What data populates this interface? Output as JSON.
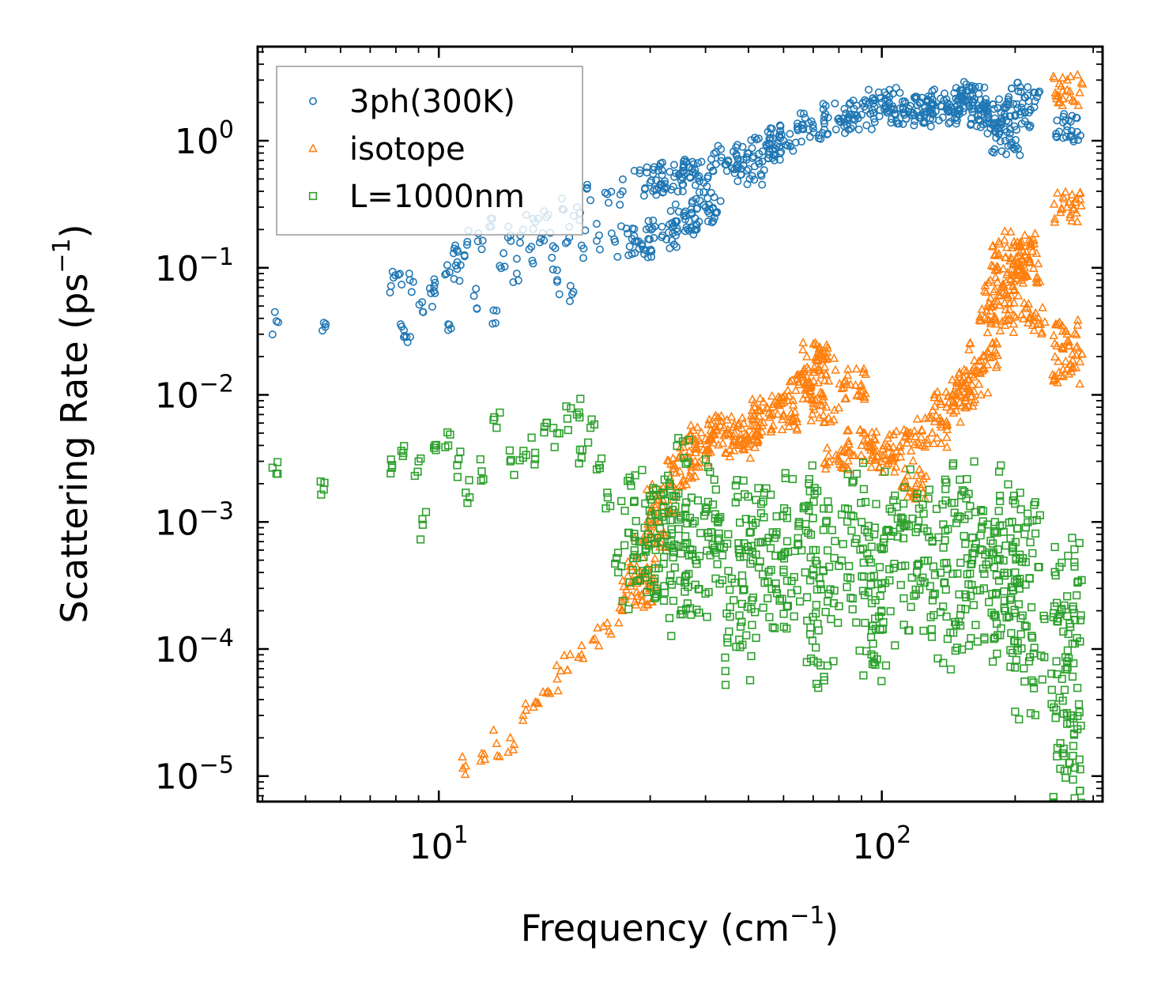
{
  "chart_data": {
    "type": "scatter",
    "xscale": "log",
    "yscale": "log",
    "xlim": [
      3.9,
      315
    ],
    "ylim": [
      6.3e-06,
      5.5
    ],
    "xlabel": {
      "main": "Frequency (cm",
      "sup": "−1",
      "tail": ")"
    },
    "ylabel": {
      "main": "Scattering Rate (ps",
      "sup": "−1",
      "tail": ")"
    },
    "xticks": [
      {
        "value": 10,
        "base": "10",
        "exp": "1"
      },
      {
        "value": 100,
        "base": "10",
        "exp": "2"
      }
    ],
    "yticks": [
      {
        "value": 1,
        "base": "10",
        "exp": "0"
      },
      {
        "value": 0.1,
        "base": "10",
        "exp": "−1"
      },
      {
        "value": 0.01,
        "base": "10",
        "exp": "−2"
      },
      {
        "value": 0.001,
        "base": "10",
        "exp": "−3"
      },
      {
        "value": 0.0001,
        "base": "10",
        "exp": "−4"
      },
      {
        "value": 1e-05,
        "base": "10",
        "exp": "−5"
      }
    ],
    "legend": {
      "location": "upper-left"
    },
    "series": [
      {
        "name": "3ph(300K)",
        "marker": "circle",
        "color": "#1f77b4",
        "points": [
          [
            4.3,
            0.038
          ],
          [
            5.5,
            0.037
          ],
          [
            7.8,
            0.072
          ],
          [
            8.1,
            0.088
          ],
          [
            8.2,
            0.036
          ],
          [
            8.5,
            0.026
          ],
          [
            8.6,
            0.08
          ],
          [
            9.2,
            0.045
          ],
          [
            9.6,
            0.063
          ],
          [
            9.8,
            0.063
          ],
          [
            10.4,
            0.09
          ],
          [
            10.5,
            0.036
          ],
          [
            10.8,
            0.13
          ],
          [
            11.0,
            0.098
          ],
          [
            11.2,
            0.105
          ],
          [
            11.6,
            0.16
          ],
          [
            12.0,
            0.06
          ],
          [
            12.5,
            0.14
          ],
          [
            13.0,
            0.21
          ],
          [
            13.5,
            0.046
          ],
          [
            14.0,
            0.13
          ],
          [
            14.5,
            0.18
          ],
          [
            15.0,
            0.09
          ],
          [
            15.5,
            0.2
          ],
          [
            16.0,
            0.14
          ],
          [
            16.5,
            0.23
          ],
          [
            17.0,
            0.17
          ],
          [
            17.5,
            0.25
          ],
          [
            18.0,
            0.12
          ],
          [
            18.5,
            0.08
          ],
          [
            19.0,
            0.29
          ],
          [
            19.5,
            0.16
          ],
          [
            20.0,
            0.062
          ],
          [
            20.5,
            0.3
          ],
          [
            21.0,
            0.15
          ],
          [
            22.0,
            0.34
          ],
          [
            23.0,
            0.18
          ],
          [
            24.0,
            0.38
          ],
          [
            25.0,
            0.16
          ],
          [
            26.0,
            0.4
          ],
          [
            28.0,
            0.16
          ],
          [
            30.0,
            0.47
          ],
          [
            32.0,
            0.18
          ],
          [
            34.0,
            0.52
          ],
          [
            36.0,
            0.24
          ],
          [
            38.0,
            0.55
          ],
          [
            40.0,
            0.3
          ],
          [
            45.0,
            0.7
          ],
          [
            50.0,
            0.6
          ],
          [
            55.0,
            0.9
          ],
          [
            60.0,
            1.0
          ],
          [
            70.0,
            1.25
          ],
          [
            80.0,
            1.5
          ],
          [
            90.0,
            1.6
          ],
          [
            100.0,
            2.0
          ],
          [
            110.0,
            1.8
          ],
          [
            120.0,
            1.7
          ],
          [
            130.0,
            1.9
          ],
          [
            140.0,
            1.8
          ],
          [
            150.0,
            2.2
          ],
          [
            160.0,
            2.0
          ],
          [
            170.0,
            1.7
          ],
          [
            180.0,
            1.5
          ],
          [
            190.0,
            1.0
          ],
          [
            200.0,
            1.6
          ],
          [
            210.0,
            2.2
          ],
          [
            262.0,
            1.3
          ]
        ]
      },
      {
        "name": "isotope",
        "marker": "triangle",
        "color": "#ff7f0e",
        "points": [
          [
            11.5,
            1.2e-05
          ],
          [
            12.5,
            1.5e-05
          ],
          [
            13.5,
            1.8e-05
          ],
          [
            14.5,
            2e-05
          ],
          [
            15.5,
            3e-05
          ],
          [
            16.5,
            3.8e-05
          ],
          [
            17.5,
            4.5e-05
          ],
          [
            18.5,
            5.8e-05
          ],
          [
            19.5,
            6.8e-05
          ],
          [
            21.0,
            9e-05
          ],
          [
            22.5,
            0.00012
          ],
          [
            24.0,
            0.00016
          ],
          [
            26.0,
            0.0002
          ],
          [
            28.0,
            0.00028
          ],
          [
            29.0,
            0.0004
          ],
          [
            30.0,
            0.0008
          ],
          [
            32.0,
            0.0015
          ],
          [
            35.0,
            0.0025
          ],
          [
            38.0,
            0.0035
          ],
          [
            40.0,
            0.0045
          ],
          [
            44.0,
            0.0055
          ],
          [
            48.0,
            0.004
          ],
          [
            52.0,
            0.005
          ],
          [
            55.0,
            0.008
          ],
          [
            60.0,
            0.007
          ],
          [
            65.0,
            0.012
          ],
          [
            70.0,
            0.015
          ],
          [
            72.0,
            0.02
          ],
          [
            75.0,
            0.008
          ],
          [
            80.0,
            0.003
          ],
          [
            85.0,
            0.012
          ],
          [
            90.0,
            0.004
          ],
          [
            100.0,
            0.003
          ],
          [
            110.0,
            0.004
          ],
          [
            120.0,
            0.002
          ],
          [
            130.0,
            0.005
          ],
          [
            140.0,
            0.008
          ],
          [
            150.0,
            0.01
          ],
          [
            160.0,
            0.012
          ],
          [
            170.0,
            0.02
          ],
          [
            180.0,
            0.04
          ],
          [
            185.0,
            0.06
          ],
          [
            190.0,
            0.12
          ],
          [
            195.0,
            0.08
          ],
          [
            205.0,
            0.15
          ],
          [
            210.0,
            0.1
          ],
          [
            215.0,
            0.04
          ],
          [
            262.0,
            2.5
          ],
          [
            262.0,
            0.3
          ],
          [
            262.0,
            0.03
          ],
          [
            262.0,
            0.016
          ]
        ]
      },
      {
        "name": "L=1000nm",
        "marker": "square",
        "color": "#2ca02c",
        "points": [
          [
            4.3,
            0.0024
          ],
          [
            5.5,
            0.0018
          ],
          [
            7.8,
            0.0031
          ],
          [
            8.3,
            0.0033
          ],
          [
            9.0,
            0.003
          ],
          [
            9.2,
            0.00095
          ],
          [
            9.8,
            0.004
          ],
          [
            10.5,
            0.004
          ],
          [
            11.0,
            0.0028
          ],
          [
            11.5,
            0.0017
          ],
          [
            12.5,
            0.0025
          ],
          [
            13.5,
            0.0055
          ],
          [
            14.5,
            0.003
          ],
          [
            15.5,
            0.0032
          ],
          [
            16.5,
            0.0035
          ],
          [
            17.5,
            0.006
          ],
          [
            18.5,
            0.005
          ],
          [
            19.5,
            0.0065
          ],
          [
            20.5,
            0.007
          ],
          [
            21.0,
            0.0032
          ],
          [
            22.0,
            0.0055
          ],
          [
            23.0,
            0.0028
          ],
          [
            24.0,
            0.0017
          ],
          [
            25.0,
            0.00047
          ],
          [
            27.0,
            0.0021
          ],
          [
            28.0,
            0.00052
          ],
          [
            30.0,
            0.001
          ],
          [
            32.0,
            0.0007
          ],
          [
            34.0,
            0.0016
          ],
          [
            36.0,
            0.00037
          ],
          [
            38.0,
            0.0005
          ],
          [
            40.0,
            0.0012
          ],
          [
            45.0,
            0.0008
          ],
          [
            48.0,
            0.00015
          ],
          [
            50.0,
            0.0006
          ],
          [
            55.0,
            0.0007
          ],
          [
            60.0,
            0.00042
          ],
          [
            65.0,
            0.001
          ],
          [
            70.0,
            0.0006
          ],
          [
            72.0,
            0.00014
          ],
          [
            80.0,
            0.00045
          ],
          [
            90.0,
            0.001
          ],
          [
            95.0,
            0.00014
          ],
          [
            100.0,
            0.0003
          ],
          [
            110.0,
            0.0009
          ],
          [
            120.0,
            0.0004
          ],
          [
            130.0,
            0.0007
          ],
          [
            140.0,
            0.00018
          ],
          [
            150.0,
            0.0011
          ],
          [
            160.0,
            0.0005
          ],
          [
            170.0,
            0.0003
          ],
          [
            180.0,
            0.001
          ],
          [
            190.0,
            0.0002
          ],
          [
            200.0,
            0.0004
          ],
          [
            210.0,
            0.0008
          ],
          [
            215.0,
            8e-05
          ],
          [
            262.0,
            0.00026
          ],
          [
            262.0,
            8e-05
          ],
          [
            262.0,
            3e-05
          ],
          [
            262.0,
            1.1e-05
          ]
        ]
      }
    ]
  }
}
